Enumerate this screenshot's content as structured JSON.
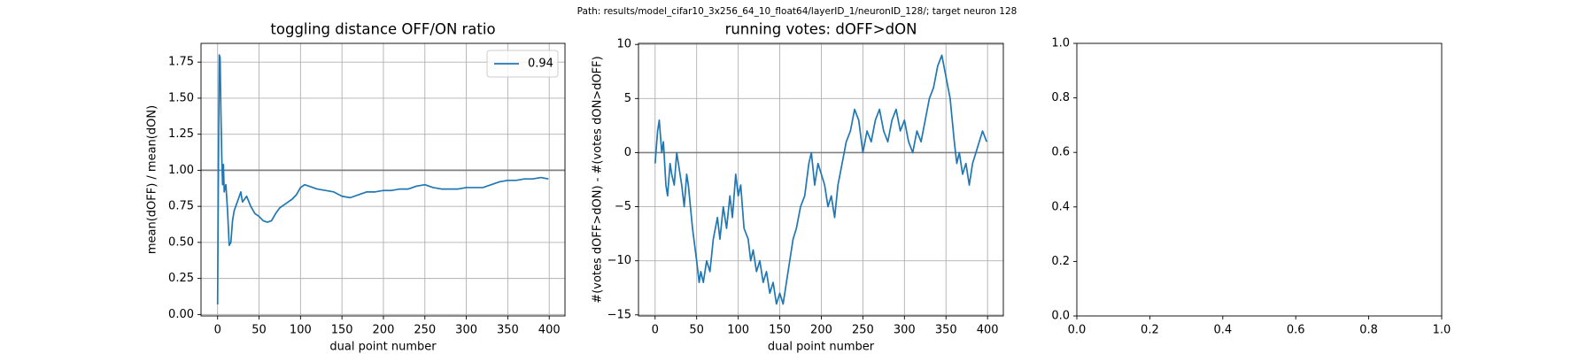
{
  "suptitle": "Path: results/model_cifar10_3x256_64_10_float64/layerID_1/neuronID_128/; target neuron 128",
  "chart_data": [
    {
      "type": "line",
      "title": "toggling distance OFF/ON ratio",
      "xlabel": "dual point number",
      "ylabel": "mean(dOFF) / mean(dON)",
      "xlim": [
        -20,
        419
      ],
      "ylim": [
        -0.01,
        1.88
      ],
      "xticks": [
        0,
        50,
        100,
        150,
        200,
        250,
        300,
        350,
        400
      ],
      "yticks": [
        {
          "value": 0,
          "label": "0.00"
        },
        {
          "value": 0.25,
          "label": "0.25"
        },
        {
          "value": 0.5,
          "label": "0.50"
        },
        {
          "value": 0.75,
          "label": "0.75"
        },
        {
          "value": 1,
          "label": "1.00"
        },
        {
          "value": 1.25,
          "label": "1.25"
        },
        {
          "value": 1.5,
          "label": "1.50"
        },
        {
          "value": 1.75,
          "label": "1.75"
        }
      ],
      "grid": true,
      "hlines": [
        1
      ],
      "hline_color": "#808080",
      "legend": "upper right",
      "x": [
        0,
        1,
        2,
        3,
        4,
        5,
        6,
        7,
        8,
        10,
        12,
        14,
        16,
        18,
        20,
        25,
        28,
        30,
        35,
        40,
        45,
        50,
        55,
        60,
        65,
        70,
        75,
        80,
        85,
        90,
        95,
        100,
        105,
        110,
        120,
        130,
        140,
        150,
        160,
        170,
        180,
        190,
        200,
        210,
        220,
        230,
        240,
        250,
        260,
        270,
        280,
        290,
        300,
        310,
        320,
        330,
        340,
        350,
        360,
        370,
        380,
        390,
        399
      ],
      "series": [
        {
          "name": "0.94",
          "color": "#1f77b4",
          "values": [
            0.07,
            1.0,
            1.8,
            1.78,
            1.4,
            1.1,
            0.9,
            1.04,
            0.85,
            0.9,
            0.72,
            0.48,
            0.5,
            0.65,
            0.72,
            0.8,
            0.85,
            0.78,
            0.82,
            0.75,
            0.7,
            0.68,
            0.65,
            0.64,
            0.65,
            0.7,
            0.74,
            0.76,
            0.78,
            0.8,
            0.83,
            0.88,
            0.9,
            0.89,
            0.87,
            0.86,
            0.85,
            0.82,
            0.81,
            0.83,
            0.85,
            0.85,
            0.86,
            0.86,
            0.87,
            0.87,
            0.89,
            0.9,
            0.88,
            0.87,
            0.87,
            0.87,
            0.88,
            0.88,
            0.88,
            0.9,
            0.92,
            0.93,
            0.93,
            0.94,
            0.94,
            0.95,
            0.94
          ]
        }
      ]
    },
    {
      "type": "line",
      "title": "running votes: dOFF>dON",
      "xlabel": "dual point number",
      "ylabel": "#(votes dOFF>dON) - #(votes dON>dOFF)",
      "xlim": [
        -20,
        419
      ],
      "ylim": [
        -15.1,
        10.1
      ],
      "xticks": [
        0,
        50,
        100,
        150,
        200,
        250,
        300,
        350,
        400
      ],
      "yticks": [
        {
          "value": -15,
          "label": "−15"
        },
        {
          "value": -10,
          "label": "−10"
        },
        {
          "value": -5,
          "label": "−5"
        },
        0,
        5,
        10
      ],
      "grid": true,
      "hlines": [
        0
      ],
      "hline_color": "#808080",
      "x": [
        0,
        3,
        5,
        8,
        10,
        13,
        15,
        18,
        20,
        23,
        26,
        28,
        32,
        35,
        38,
        40,
        45,
        50,
        53,
        55,
        58,
        62,
        66,
        70,
        75,
        78,
        82,
        86,
        90,
        93,
        97,
        100,
        103,
        107,
        112,
        115,
        118,
        122,
        126,
        130,
        134,
        138,
        142,
        146,
        150,
        154,
        158,
        162,
        166,
        170,
        175,
        180,
        185,
        188,
        192,
        196,
        200,
        204,
        208,
        212,
        216,
        220,
        225,
        230,
        235,
        240,
        245,
        250,
        255,
        260,
        265,
        270,
        275,
        280,
        285,
        290,
        295,
        300,
        305,
        310,
        315,
        320,
        325,
        330,
        335,
        340,
        345,
        350,
        355,
        360,
        363,
        366,
        370,
        374,
        378,
        382,
        386,
        390,
        394,
        399
      ],
      "series": [
        {
          "color": "#1f77b4",
          "values": [
            -1,
            2,
            3,
            0,
            1,
            -3,
            -4,
            -1,
            -2,
            -3,
            0,
            -1,
            -3,
            -5,
            -2,
            -3,
            -7,
            -10,
            -12,
            -11,
            -12,
            -10,
            -11,
            -8,
            -6,
            -8,
            -5,
            -7,
            -4,
            -6,
            -2,
            -4,
            -3,
            -7,
            -8,
            -10,
            -9,
            -11,
            -10,
            -12,
            -11,
            -13,
            -12,
            -14,
            -13,
            -14,
            -12,
            -10,
            -8,
            -7,
            -5,
            -4,
            -1,
            0,
            -3,
            -1,
            -2,
            -3,
            -5,
            -4,
            -6,
            -3,
            -1,
            1,
            2,
            4,
            3,
            0,
            2,
            1,
            3,
            4,
            2,
            1,
            3,
            4,
            2,
            3,
            1,
            0,
            2,
            1,
            3,
            5,
            6,
            8,
            9,
            7,
            5,
            1,
            -1,
            0,
            -2,
            -1,
            -3,
            -1,
            0,
            1,
            2,
            1
          ]
        }
      ]
    },
    {
      "type": "line",
      "xlim": [
        0,
        1
      ],
      "ylim": [
        0,
        1
      ],
      "xticks": [
        {
          "value": 0,
          "label": "0.0"
        },
        {
          "value": 0.2,
          "label": "0.2"
        },
        {
          "value": 0.4,
          "label": "0.4"
        },
        {
          "value": 0.6,
          "label": "0.6"
        },
        {
          "value": 0.8,
          "label": "0.8"
        },
        {
          "value": 1,
          "label": "1.0"
        }
      ],
      "yticks": [
        {
          "value": 0,
          "label": "0.0"
        },
        {
          "value": 0.2,
          "label": "0.2"
        },
        {
          "value": 0.4,
          "label": "0.4"
        },
        {
          "value": 0.6,
          "label": "0.6"
        },
        {
          "value": 0.8,
          "label": "0.8"
        },
        {
          "value": 1,
          "label": "1.0"
        }
      ],
      "grid": false
    }
  ]
}
